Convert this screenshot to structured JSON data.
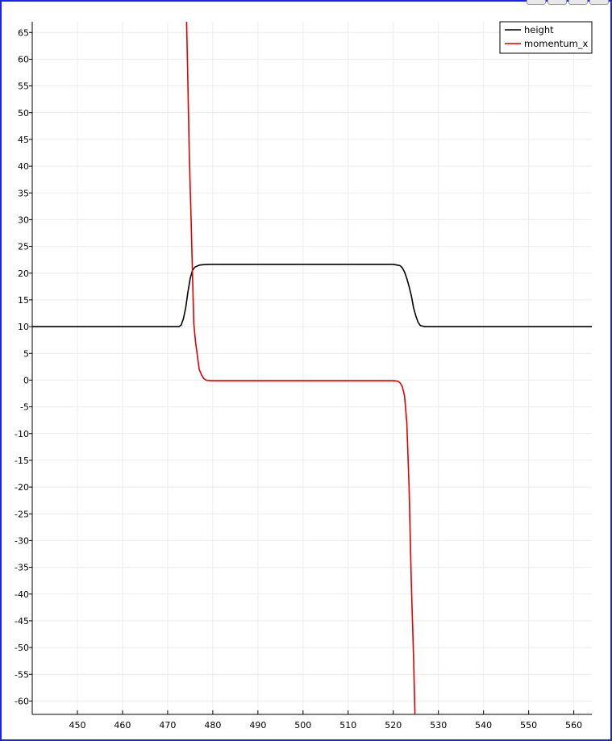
{
  "chart_data": {
    "type": "line",
    "title": "",
    "xlabel": "",
    "ylabel": "",
    "xlim": [
      440,
      564
    ],
    "ylim": [
      -62.5,
      67
    ],
    "grid": true,
    "legend_position": "top-right",
    "x_ticks": [
      "450",
      "460",
      "470",
      "480",
      "490",
      "500",
      "510",
      "520",
      "530",
      "540",
      "550",
      "560"
    ],
    "y_ticks": [
      "65",
      "60",
      "55",
      "50",
      "45",
      "40",
      "35",
      "30",
      "25",
      "20",
      "15",
      "10",
      "5",
      "0",
      "-5",
      "-10",
      "-15",
      "-20",
      "-25",
      "-30",
      "-35",
      "-40",
      "-45",
      "-50",
      "-55",
      "-60"
    ],
    "series": [
      {
        "name": "height",
        "color": "#000000",
        "x": [
          440,
          472.5,
          473,
          473.5,
          474,
          474.5,
          475,
          475.5,
          476,
          477,
          478,
          480,
          520,
          521.5,
          522,
          522.5,
          523,
          523.5,
          524,
          524.5,
          525,
          525.5,
          526,
          527,
          564
        ],
        "y": [
          10,
          10,
          10.3,
          11.5,
          13.5,
          16.5,
          19,
          20.5,
          21.1,
          21.5,
          21.6,
          21.65,
          21.65,
          21.4,
          21,
          20.2,
          19,
          17.5,
          15.8,
          13.5,
          12,
          10.8,
          10.2,
          10,
          10
        ]
      },
      {
        "name": "momentum_x",
        "color": "#e00000",
        "x": [
          474.2,
          474.5,
          474.8,
          475.2,
          475.5,
          475.8,
          476.2,
          476.6,
          477,
          477.5,
          478,
          478.5,
          479.5,
          481,
          520,
          521,
          521.5,
          522,
          522.5,
          523,
          523.5,
          524,
          524.5,
          524.8
        ],
        "y": [
          67,
          55,
          42,
          30,
          20,
          10.5,
          7,
          4.5,
          2,
          1,
          0.3,
          0,
          -0.1,
          -0.1,
          -0.1,
          -0.2,
          -0.5,
          -1.2,
          -3,
          -8,
          -20,
          -38,
          -52,
          -62.5
        ]
      }
    ]
  }
}
